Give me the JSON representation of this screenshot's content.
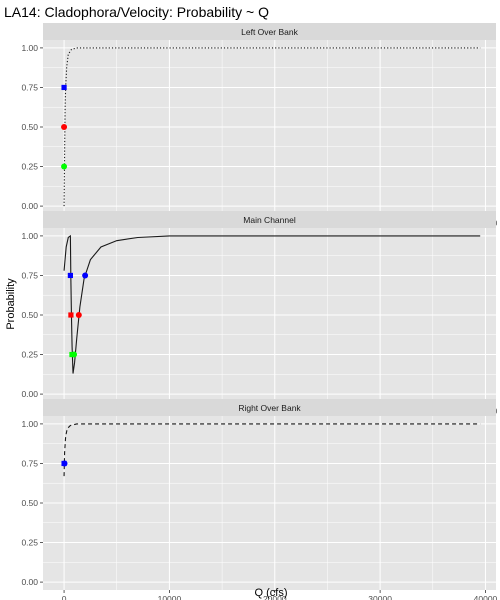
{
  "chart_data": {
    "type": "line",
    "title": "LA14: Cladophora/Velocity: Probability ~ Q",
    "xlabel": "Q (cfs)",
    "ylabel": "Probability",
    "xlim": [
      -2000,
      41000
    ],
    "ylim": [
      -0.05,
      1.05
    ],
    "x_ticks": [
      0,
      10000,
      20000,
      30000,
      40000
    ],
    "x_tick_labels": [
      "0",
      "10000",
      "20000",
      "30000",
      "40000"
    ],
    "y_ticks": [
      0,
      0.25,
      0.5,
      0.75,
      1.0
    ],
    "y_tick_labels": [
      "0.00",
      "0.25",
      "0.50",
      "0.75",
      "1.00"
    ],
    "grid": true,
    "colors": {
      "panel_bg": "#e5e5e5",
      "strip_bg": "#d9d9d9",
      "grid": "#ffffff",
      "line": "#1a1a1a",
      "marker_075": "#0000ff",
      "marker_050": "#ff0000",
      "marker_025": "#00ff00"
    },
    "panels": [
      {
        "name": "Left Over Bank",
        "line_style": "dotted",
        "curve": [
          [
            0,
            0
          ],
          [
            20,
            0.12
          ],
          [
            40,
            0.25
          ],
          [
            60,
            0.4
          ],
          [
            80,
            0.5
          ],
          [
            100,
            0.62
          ],
          [
            150,
            0.75
          ],
          [
            250,
            0.88
          ],
          [
            400,
            0.96
          ],
          [
            700,
            0.99
          ],
          [
            1200,
            1.0
          ],
          [
            39500,
            1.0
          ]
        ],
        "markers": [
          {
            "x": 0,
            "y": 0.75,
            "shape": "square",
            "color": "#0000ff"
          },
          {
            "x": 0,
            "y": 0.5,
            "shape": "circle",
            "color": "#ff0000"
          },
          {
            "x": 0,
            "y": 0.25,
            "shape": "circle",
            "color": "#00ff00"
          }
        ]
      },
      {
        "name": "Main Channel",
        "line_style": "solid",
        "curve": [
          [
            0,
            0.78
          ],
          [
            200,
            0.93
          ],
          [
            400,
            0.99
          ],
          [
            600,
            1.0
          ],
          [
            640,
            0.75
          ],
          [
            700,
            0.5
          ],
          [
            760,
            0.3
          ],
          [
            850,
            0.13
          ],
          [
            1000,
            0.2
          ],
          [
            1200,
            0.35
          ],
          [
            1500,
            0.55
          ],
          [
            1900,
            0.73
          ],
          [
            2500,
            0.85
          ],
          [
            3500,
            0.93
          ],
          [
            5000,
            0.97
          ],
          [
            7000,
            0.99
          ],
          [
            10000,
            1.0
          ],
          [
            39500,
            1.0
          ]
        ],
        "markers": [
          {
            "x": 600,
            "y": 0.75,
            "shape": "square",
            "color": "#0000ff"
          },
          {
            "x": 2000,
            "y": 0.75,
            "shape": "circle",
            "color": "#0000ff"
          },
          {
            "x": 650,
            "y": 0.5,
            "shape": "square",
            "color": "#ff0000"
          },
          {
            "x": 1400,
            "y": 0.5,
            "shape": "circle",
            "color": "#ff0000"
          },
          {
            "x": 750,
            "y": 0.25,
            "shape": "square",
            "color": "#00ff00"
          },
          {
            "x": 950,
            "y": 0.25,
            "shape": "circle",
            "color": "#00ff00"
          }
        ]
      },
      {
        "name": "Right Over Bank",
        "line_style": "dashed",
        "curve": [
          [
            0,
            0.67
          ],
          [
            50,
            0.82
          ],
          [
            150,
            0.92
          ],
          [
            300,
            0.97
          ],
          [
            600,
            0.99
          ],
          [
            1200,
            1.0
          ],
          [
            39500,
            1.0
          ]
        ],
        "markers": [
          {
            "x": 0,
            "y": 0.75,
            "shape": "square",
            "color": "#0000ff"
          },
          {
            "x": 40,
            "y": 0.75,
            "shape": "circle",
            "color": "#0000ff"
          }
        ]
      }
    ]
  }
}
